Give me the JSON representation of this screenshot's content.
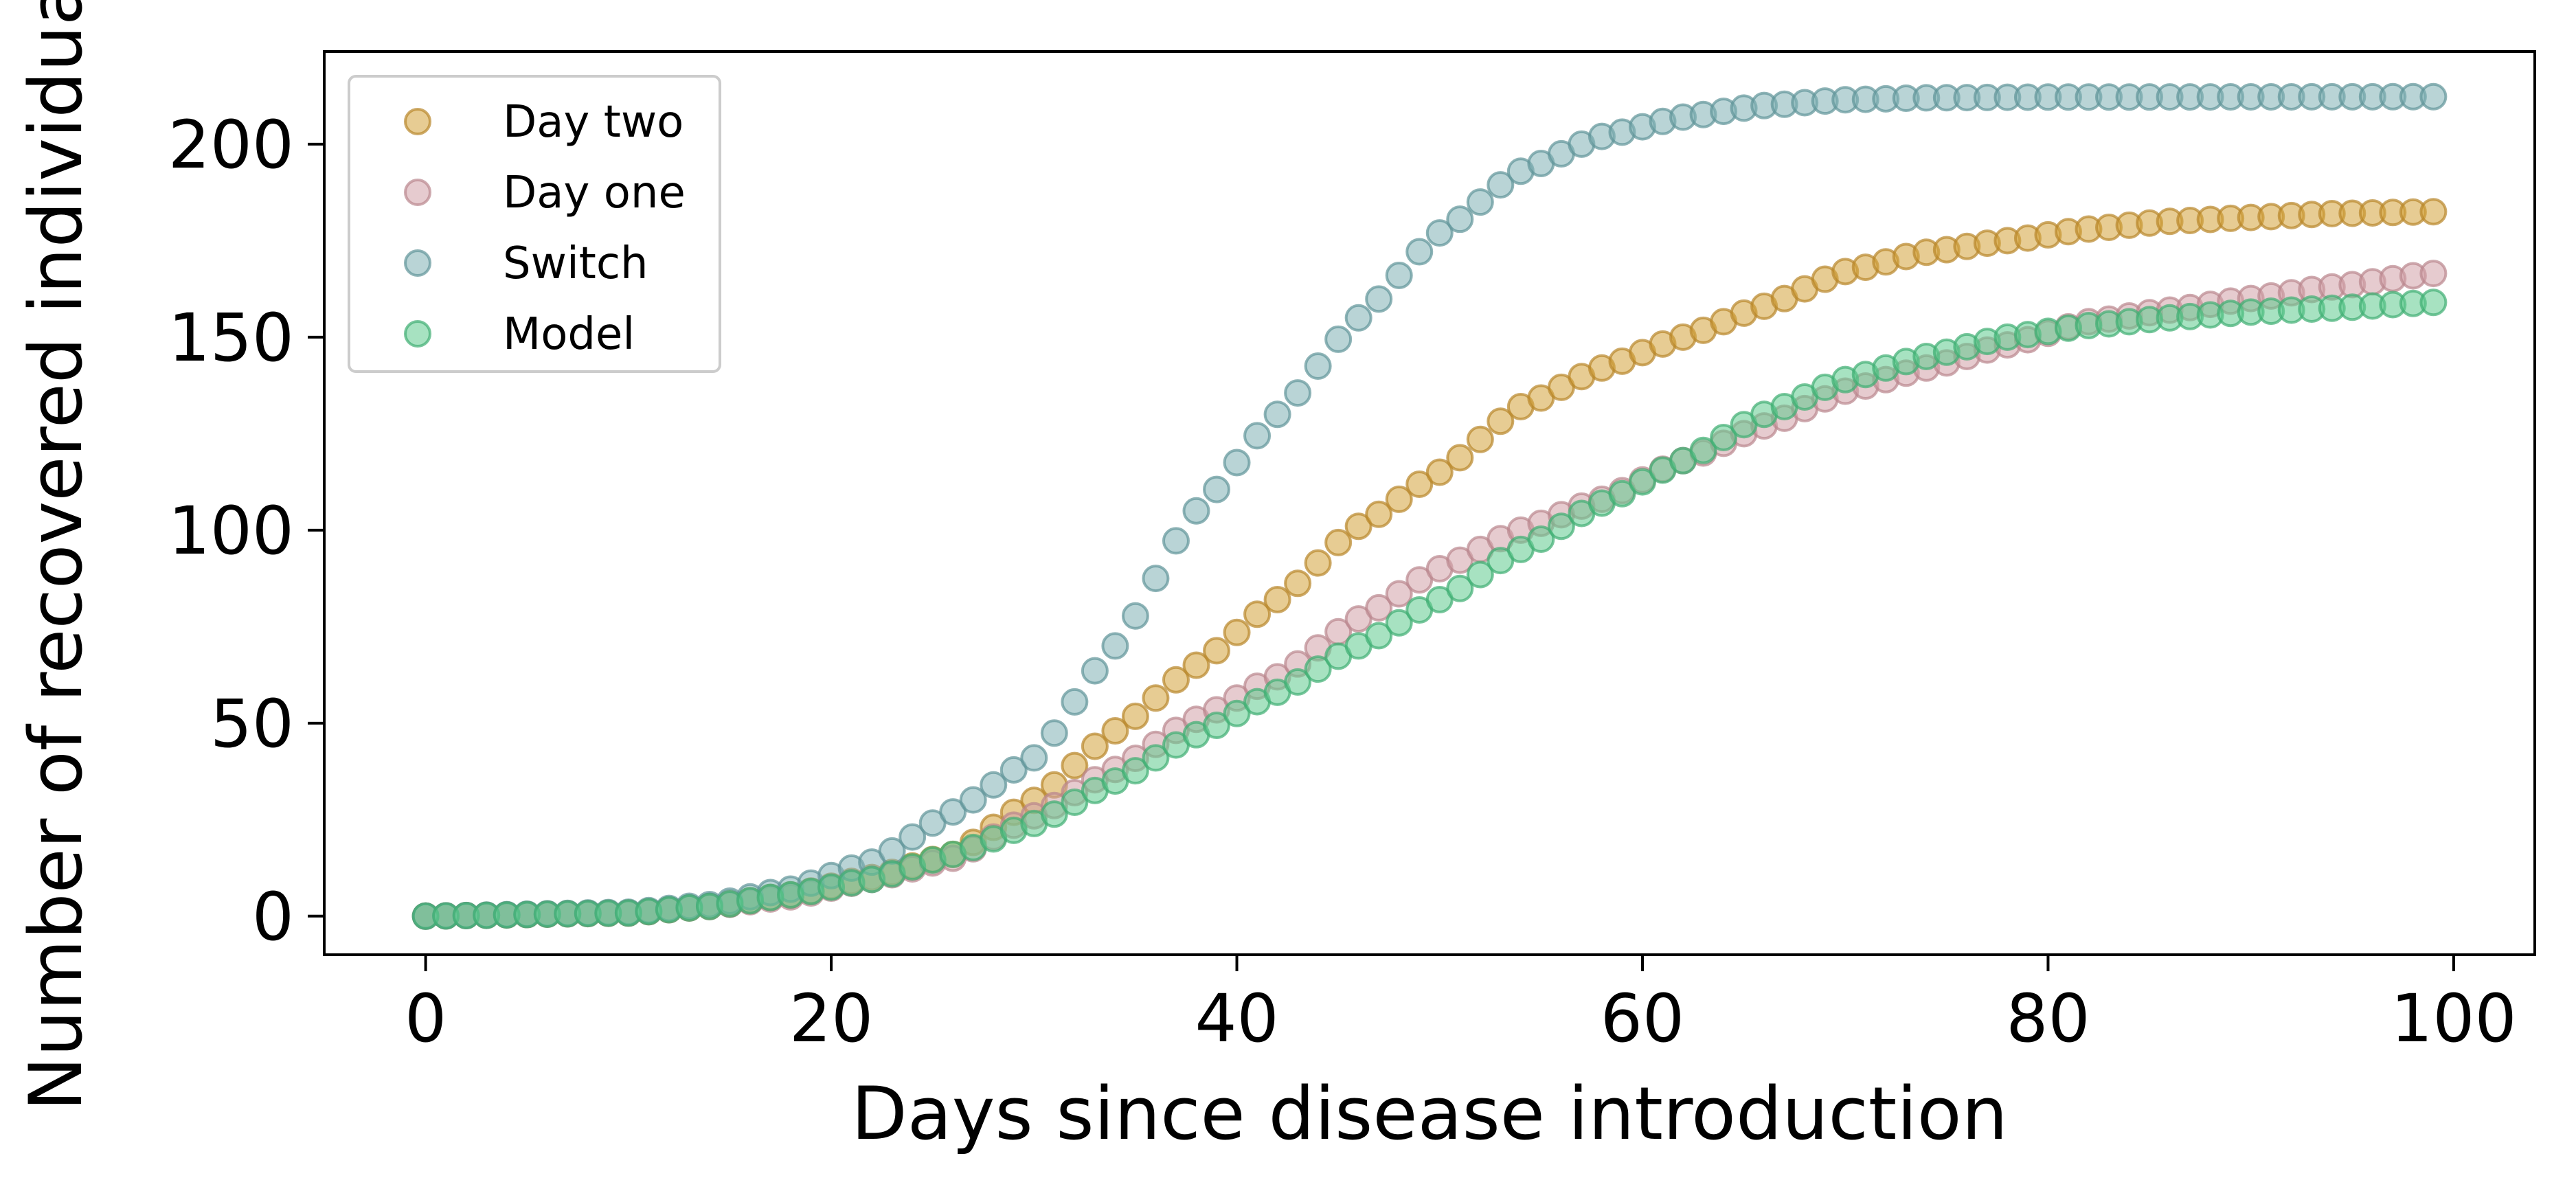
{
  "chart_data": {
    "type": "scatter",
    "title": "",
    "xlabel": "Days since disease introduction",
    "ylabel": "Number of recovered individuals",
    "xlim": [
      -5,
      104
    ],
    "ylim": [
      -10,
      224
    ],
    "xticks": [
      0,
      20,
      40,
      60,
      80,
      100
    ],
    "yticks": [
      0,
      50,
      100,
      150,
      200
    ],
    "grid": false,
    "legend_position": "top-left",
    "marker_alpha": 0.55,
    "series": [
      {
        "name": "Day two",
        "color": "#d4a23a",
        "edge_color": "#b8862a",
        "start_day": 0,
        "end_day": 99,
        "knots": [
          [
            0,
            0
          ],
          [
            10,
            0.8
          ],
          [
            14,
            2.5
          ],
          [
            18,
            5.5
          ],
          [
            22,
            10
          ],
          [
            26,
            16
          ],
          [
            30,
            30
          ],
          [
            34,
            48
          ],
          [
            38,
            65
          ],
          [
            42,
            82
          ],
          [
            46,
            101
          ],
          [
            50,
            115
          ],
          [
            54,
            132
          ],
          [
            58,
            142
          ],
          [
            62,
            150
          ],
          [
            66,
            158
          ],
          [
            70,
            167
          ],
          [
            74,
            172
          ],
          [
            78,
            175
          ],
          [
            82,
            178
          ],
          [
            86,
            180
          ],
          [
            90,
            181
          ],
          [
            94,
            182
          ],
          [
            99,
            182.5
          ]
        ]
      },
      {
        "name": "Day one",
        "color": "#d2a1a8",
        "edge_color": "#b9868d",
        "start_day": 0,
        "end_day": 99,
        "knots": [
          [
            0,
            0
          ],
          [
            10,
            0.8
          ],
          [
            14,
            2.5
          ],
          [
            18,
            5
          ],
          [
            22,
            9.5
          ],
          [
            26,
            15
          ],
          [
            30,
            26
          ],
          [
            34,
            38
          ],
          [
            38,
            51
          ],
          [
            42,
            62
          ],
          [
            46,
            77
          ],
          [
            50,
            90
          ],
          [
            54,
            100
          ],
          [
            58,
            108
          ],
          [
            62,
            118
          ],
          [
            66,
            127
          ],
          [
            70,
            136
          ],
          [
            74,
            142
          ],
          [
            78,
            148
          ],
          [
            82,
            154
          ],
          [
            86,
            157
          ],
          [
            90,
            160
          ],
          [
            94,
            163
          ],
          [
            99,
            166.5
          ]
        ]
      },
      {
        "name": "Switch",
        "color": "#7fb0b4",
        "edge_color": "#5f9498",
        "start_day": 0,
        "end_day": 99,
        "knots": [
          [
            0,
            0
          ],
          [
            10,
            1
          ],
          [
            14,
            3
          ],
          [
            18,
            7
          ],
          [
            22,
            14
          ],
          [
            26,
            27
          ],
          [
            30,
            41
          ],
          [
            34,
            70
          ],
          [
            38,
            105
          ],
          [
            42,
            130
          ],
          [
            46,
            155
          ],
          [
            50,
            177
          ],
          [
            54,
            193
          ],
          [
            58,
            202
          ],
          [
            62,
            207
          ],
          [
            66,
            210
          ],
          [
            70,
            211.5
          ],
          [
            74,
            212
          ],
          [
            80,
            212.2
          ],
          [
            99,
            212.3
          ]
        ]
      },
      {
        "name": "Model",
        "color": "#5fca8e",
        "edge_color": "#3fae72",
        "start_day": 0,
        "end_day": 99,
        "knots": [
          [
            0,
            0
          ],
          [
            10,
            0.8
          ],
          [
            14,
            2.5
          ],
          [
            18,
            5.5
          ],
          [
            22,
            9.5
          ],
          [
            26,
            16
          ],
          [
            30,
            24
          ],
          [
            34,
            35
          ],
          [
            38,
            47
          ],
          [
            42,
            58
          ],
          [
            46,
            70
          ],
          [
            50,
            82
          ],
          [
            54,
            95
          ],
          [
            58,
            107
          ],
          [
            62,
            118
          ],
          [
            66,
            130
          ],
          [
            70,
            139
          ],
          [
            74,
            145
          ],
          [
            78,
            150
          ],
          [
            82,
            153
          ],
          [
            86,
            155
          ],
          [
            90,
            156.5
          ],
          [
            94,
            157.5
          ],
          [
            99,
            159
          ]
        ]
      }
    ]
  }
}
